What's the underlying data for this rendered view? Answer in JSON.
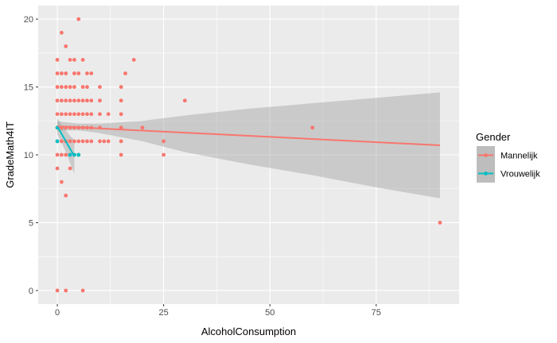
{
  "chart_data": {
    "type": "scatter",
    "title": "",
    "xlabel": "AlcoholConsumption",
    "ylabel": "GradeMath4IT",
    "xlim": [
      -4.5,
      94.5
    ],
    "ylim": [
      -1,
      21
    ],
    "xticks": [
      0,
      25,
      50,
      75
    ],
    "yticks": [
      0,
      5,
      10,
      15,
      20
    ],
    "grid": true,
    "legend": {
      "title": "Gender",
      "position": "right"
    },
    "series": [
      {
        "name": "Mannelijk",
        "color": "#F8766D",
        "points": [
          [
            0,
            17
          ],
          [
            0,
            16
          ],
          [
            0,
            15
          ],
          [
            0,
            14
          ],
          [
            0,
            13
          ],
          [
            0,
            12
          ],
          [
            0,
            11
          ],
          [
            0,
            10
          ],
          [
            0,
            9
          ],
          [
            0,
            0
          ],
          [
            1,
            19
          ],
          [
            1,
            16
          ],
          [
            1,
            15
          ],
          [
            1,
            14
          ],
          [
            1,
            13
          ],
          [
            1,
            12
          ],
          [
            1,
            11
          ],
          [
            1,
            10
          ],
          [
            1,
            8
          ],
          [
            2,
            18
          ],
          [
            2,
            16
          ],
          [
            2,
            15
          ],
          [
            2,
            14
          ],
          [
            2,
            13
          ],
          [
            2,
            12
          ],
          [
            2,
            11
          ],
          [
            2,
            10
          ],
          [
            2,
            7
          ],
          [
            2,
            0
          ],
          [
            3,
            17
          ],
          [
            3,
            15
          ],
          [
            3,
            14
          ],
          [
            3,
            13
          ],
          [
            3,
            12
          ],
          [
            3,
            11
          ],
          [
            3,
            10
          ],
          [
            3,
            9
          ],
          [
            4,
            17
          ],
          [
            4,
            16
          ],
          [
            4,
            15
          ],
          [
            4,
            14
          ],
          [
            4,
            13
          ],
          [
            4,
            12
          ],
          [
            4,
            11
          ],
          [
            4,
            10
          ],
          [
            5,
            20
          ],
          [
            5,
            16
          ],
          [
            5,
            14
          ],
          [
            5,
            13
          ],
          [
            5,
            12
          ],
          [
            5,
            11
          ],
          [
            5,
            10
          ],
          [
            6,
            17
          ],
          [
            6,
            15
          ],
          [
            6,
            14
          ],
          [
            6,
            13
          ],
          [
            6,
            12
          ],
          [
            6,
            11
          ],
          [
            6,
            0
          ],
          [
            7,
            16
          ],
          [
            7,
            15
          ],
          [
            7,
            14
          ],
          [
            7,
            13
          ],
          [
            7,
            12
          ],
          [
            7,
            11
          ],
          [
            8,
            16
          ],
          [
            8,
            14
          ],
          [
            8,
            13
          ],
          [
            8,
            12
          ],
          [
            8,
            11
          ],
          [
            10,
            15
          ],
          [
            10,
            14
          ],
          [
            10,
            13
          ],
          [
            10,
            12
          ],
          [
            10,
            11
          ],
          [
            11,
            11
          ],
          [
            12,
            13
          ],
          [
            12,
            11
          ],
          [
            15,
            15
          ],
          [
            15,
            14
          ],
          [
            15,
            13
          ],
          [
            15,
            12
          ],
          [
            15,
            11
          ],
          [
            15,
            10
          ],
          [
            16,
            16
          ],
          [
            18,
            17
          ],
          [
            20,
            12
          ],
          [
            25,
            11
          ],
          [
            25,
            10
          ],
          [
            30,
            14
          ],
          [
            60,
            12
          ],
          [
            90,
            5
          ]
        ],
        "trend": {
          "x": [
            0,
            90
          ],
          "y": [
            12.1,
            10.7
          ]
        },
        "band": {
          "x": [
            0,
            2,
            5,
            10,
            20,
            30,
            45,
            60,
            75,
            90
          ],
          "lower": [
            11.7,
            11.8,
            11.8,
            11.6,
            11.0,
            10.2,
            9.3,
            8.5,
            7.6,
            6.8
          ],
          "upper": [
            12.5,
            12.4,
            12.3,
            12.3,
            12.5,
            12.9,
            13.4,
            13.8,
            14.2,
            14.6
          ]
        }
      },
      {
        "name": "Vrouwelijk",
        "color": "#00BFC4",
        "points": [
          [
            0,
            12
          ],
          [
            0,
            11
          ],
          [
            3,
            10
          ],
          [
            4,
            10
          ],
          [
            5,
            10
          ]
        ],
        "trend": {
          "x": [
            0,
            4
          ],
          "y": [
            12.1,
            9.9
          ]
        },
        "band": {
          "x": [
            0,
            1,
            2,
            3,
            4
          ],
          "lower": [
            11.5,
            10.9,
            10.2,
            9.4,
            8.6
          ],
          "upper": [
            12.7,
            12.2,
            11.8,
            11.4,
            11.1
          ]
        }
      }
    ]
  }
}
